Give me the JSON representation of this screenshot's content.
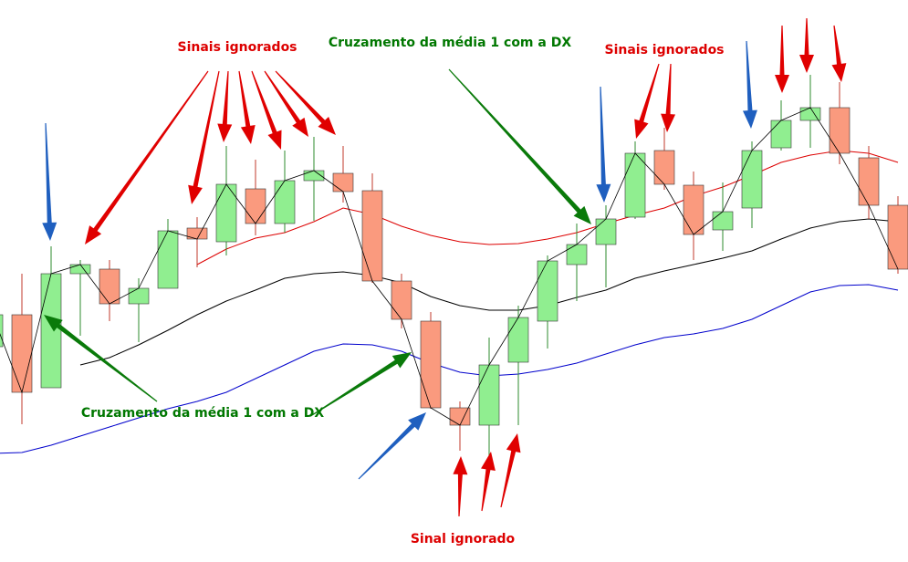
{
  "chart_data": {
    "type": "candlestick",
    "ylim": [
      0,
      616
    ],
    "up_color": "#90ee90",
    "down_color": "#fa9a7e",
    "edge_color": "#333333",
    "open": [
      236,
      271,
      191,
      316,
      321,
      283,
      300,
      366,
      351,
      409,
      371,
      418,
      426,
      407,
      308,
      264,
      169,
      150,
      219,
      264,
      326,
      348,
      378,
      451,
      413,
      364,
      388,
      454,
      484,
      498,
      443,
      391
    ],
    "high": [
      316,
      316,
      346,
      331,
      331,
      311,
      376,
      378,
      456,
      441,
      451,
      466,
      456,
      426,
      316,
      274,
      176,
      246,
      281,
      336,
      371,
      391,
      461,
      476,
      428,
      416,
      461,
      506,
      534,
      526,
      456,
      401
    ],
    "low": [
      196,
      151,
      191,
      248,
      264,
      241,
      300,
      323,
      336,
      358,
      361,
      374,
      394,
      306,
      256,
      168,
      122,
      116,
      150,
      234,
      286,
      301,
      376,
      408,
      331,
      341,
      366,
      451,
      454,
      436,
      376,
      316
    ],
    "close": [
      271,
      186,
      316,
      326,
      283,
      300,
      363,
      354,
      414,
      371,
      418,
      429,
      406,
      308,
      266,
      169,
      150,
      216,
      268,
      330,
      348,
      376,
      448,
      414,
      359,
      384,
      451,
      484,
      498,
      448,
      391,
      321
    ],
    "close_line_color": "#000000",
    "lines": [
      {
        "color": "#dd0000",
        "values": [
          null,
          null,
          null,
          null,
          null,
          null,
          null,
          326,
          343,
          355,
          361,
          373,
          388,
          381,
          368,
          358,
          351,
          348,
          349,
          354,
          361,
          371,
          380,
          388,
          401,
          411,
          424,
          438,
          446,
          451,
          448,
          438
        ]
      },
      {
        "color": "#000000",
        "values": [
          null,
          null,
          null,
          216,
          224,
          238,
          254,
          271,
          286,
          298,
          311,
          316,
          318,
          314,
          306,
          291,
          281,
          276,
          276,
          281,
          290,
          298,
          311,
          319,
          326,
          333,
          341,
          354,
          366,
          373,
          376,
          373
        ]
      },
      {
        "color": "#0000cc",
        "values": [
          119,
          120,
          128,
          138,
          148,
          158,
          168,
          176,
          186,
          201,
          216,
          231,
          239,
          238,
          231,
          218,
          208,
          204,
          206,
          211,
          218,
          228,
          238,
          246,
          250,
          256,
          266,
          281,
          296,
          303,
          304,
          298
        ]
      }
    ],
    "annotations": [
      {
        "text": "Sinais ignorados",
        "color": "#dd0000"
      },
      {
        "text": "Cruzamento da média 1 com a DX",
        "color": "#007700"
      },
      {
        "text": "Sinais ignorados",
        "color": "#dd0000"
      },
      {
        "text": "Cruzamento da média 1 com a DX",
        "color": "#007700"
      },
      {
        "text": "Sinal ignorado",
        "color": "#dd0000"
      }
    ]
  }
}
